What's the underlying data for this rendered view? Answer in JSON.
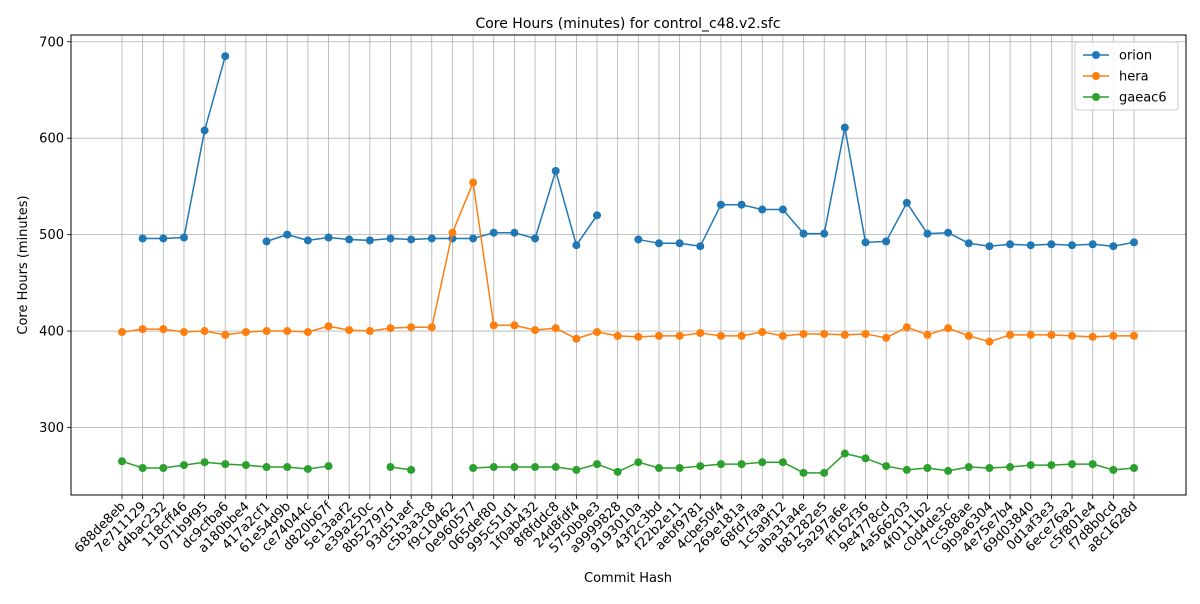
{
  "chart_data": {
    "type": "line",
    "title": "Core Hours (minutes) for control_c48.v2.sfc",
    "xlabel": "Commit Hash",
    "ylabel": "Core Hours (minutes)",
    "ylim": [
      230,
      707
    ],
    "yticks": [
      300,
      400,
      500,
      600,
      700
    ],
    "grid": true,
    "legend_position": "top-right",
    "categories": [
      "688de8eb",
      "7e711129",
      "d4bac232",
      "118cff46",
      "071b9f95",
      "dc9cfba6",
      "a180bbe4",
      "417a2cf1",
      "61e54d9b",
      "ce74044c",
      "d820b67f",
      "5e13aaf2",
      "e39a250c",
      "8b52797d",
      "93d51aef",
      "c5b3a3c8",
      "f9c10462",
      "0e960577",
      "065def80",
      "995c51d1",
      "1f0ab432",
      "8f8fddc8",
      "24d8fdf4",
      "5750b9e3",
      "a9999828",
      "9193010a",
      "43f2c3bd",
      "f22b2e11",
      "aebf9781",
      "4cbe50f4",
      "269e181a",
      "68fd7faa",
      "1c5a9f12",
      "aba31a4e",
      "b81282e5",
      "5a297a6e",
      "ff162f36",
      "9e4778cd",
      "4a566203",
      "4f0111b2",
      "c0d4de3c",
      "7cc588ae",
      "9b9a6304",
      "4e75e7b4",
      "69d03840",
      "0d1af3e3",
      "6ece76a2",
      "c5f801e4",
      "f7d8b0cd",
      "a8c1628d"
    ],
    "series": [
      {
        "name": "orion",
        "color": "#1f77b4",
        "values": [
          null,
          496,
          496,
          497,
          608,
          685,
          null,
          493,
          500,
          494,
          497,
          495,
          494,
          496,
          495,
          496,
          496,
          496,
          502,
          502,
          496,
          566,
          489,
          520,
          null,
          495,
          491,
          491,
          488,
          531,
          531,
          526,
          526,
          501,
          501,
          611,
          492,
          493,
          533,
          501,
          502,
          491,
          488,
          490,
          489,
          490,
          489,
          490,
          488,
          492
        ]
      },
      {
        "name": "hera",
        "color": "#ff7f0e",
        "values": [
          399,
          402,
          402,
          399,
          400,
          396,
          399,
          400,
          400,
          399,
          405,
          401,
          400,
          403,
          404,
          404,
          502,
          554,
          406,
          406,
          401,
          403,
          392,
          399,
          395,
          394,
          395,
          395,
          398,
          395,
          395,
          399,
          395,
          397,
          397,
          396,
          397,
          393,
          404,
          396,
          403,
          395,
          389,
          396,
          396,
          396,
          395,
          394,
          395,
          395
        ]
      },
      {
        "name": "gaeac6",
        "color": "#2ca02c",
        "values": [
          265,
          258,
          258,
          261,
          264,
          262,
          261,
          259,
          259,
          257,
          260,
          null,
          null,
          259,
          256,
          null,
          null,
          258,
          259,
          259,
          259,
          259,
          256,
          262,
          254,
          264,
          258,
          258,
          260,
          262,
          262,
          264,
          264,
          253,
          253,
          273,
          268,
          260,
          256,
          258,
          255,
          259,
          258,
          259,
          261,
          261,
          262,
          262,
          256,
          258
        ]
      }
    ]
  }
}
